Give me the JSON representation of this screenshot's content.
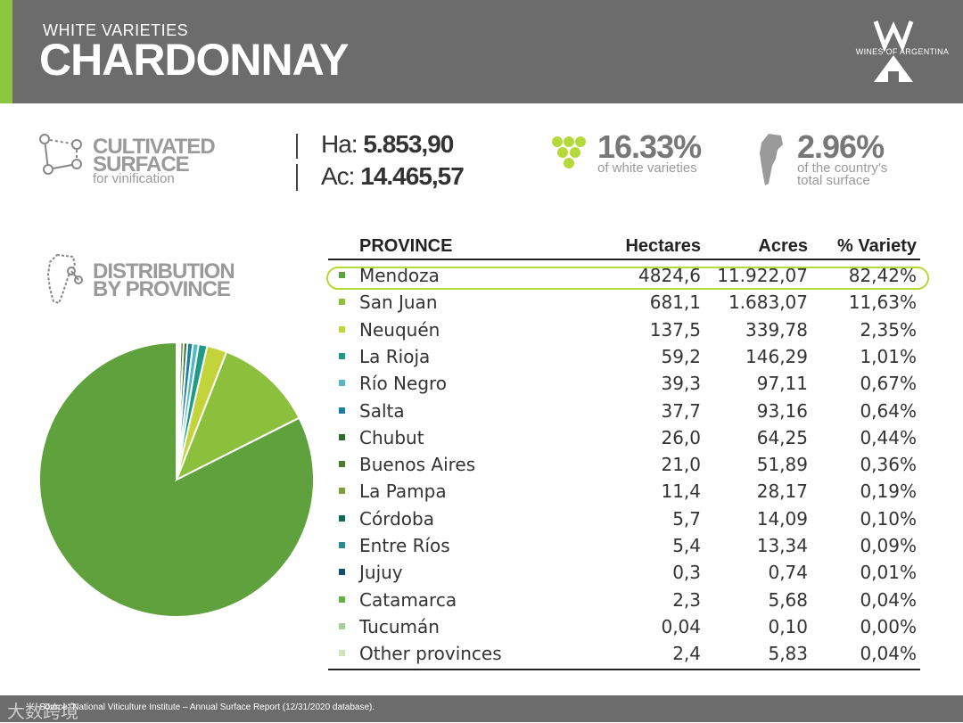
{
  "header": {
    "subtitle": "WHITE VARIETIES",
    "title": "CHARDONNAY",
    "logo_text": "WINES OF ARGENTINA"
  },
  "stats": {
    "cultivated_line1": "CULTIVATED",
    "cultivated_line2": "SURFACE",
    "cultivated_sub": "for vinification",
    "ha_label": "Ha:",
    "ha_value": "5.853,90",
    "ac_label": "Ac:",
    "ac_value": "14.465,57",
    "white_pct": "16.33%",
    "white_sub": "of white varieties",
    "country_pct": "2.96%",
    "country_sub1": "of the country's",
    "country_sub2": "total surface"
  },
  "distribution": {
    "line1": "DISTRIBUTION",
    "line2": "BY PROVINCE"
  },
  "table": {
    "headers": [
      "PROVINCE",
      "Hectares",
      "Acres",
      "% Variety"
    ],
    "rows": [
      {
        "province": "Mendoza",
        "hectares": "4824,6",
        "acres": "11.922,07",
        "pct": "82,42%"
      },
      {
        "province": "San Juan",
        "hectares": "681,1",
        "acres": "1.683,07",
        "pct": "11,63%"
      },
      {
        "province": "Neuquén",
        "hectares": "137,5",
        "acres": "339,78",
        "pct": "2,35%"
      },
      {
        "province": "La Rioja",
        "hectares": "59,2",
        "acres": "146,29",
        "pct": "1,01%"
      },
      {
        "province": "Río Negro",
        "hectares": "39,3",
        "acres": "97,11",
        "pct": "0,67%"
      },
      {
        "province": "Salta",
        "hectares": "37,7",
        "acres": "93,16",
        "pct": "0,64%"
      },
      {
        "province": "Chubut",
        "hectares": "26,0",
        "acres": "64,25",
        "pct": "0,44%"
      },
      {
        "province": "Buenos Aires",
        "hectares": "21,0",
        "acres": "51,89",
        "pct": "0,36%"
      },
      {
        "province": "La Pampa",
        "hectares": "11,4",
        "acres": "28,17",
        "pct": "0,19%"
      },
      {
        "province": "Córdoba",
        "hectares": "5,7",
        "acres": "14,09",
        "pct": "0,10%"
      },
      {
        "province": "Entre Ríos",
        "hectares": "5,4",
        "acres": "13,34",
        "pct": "0,09%"
      },
      {
        "province": "Jujuy",
        "hectares": "0,3",
        "acres": "0,74",
        "pct": "0,01%"
      },
      {
        "province": "Catamarca",
        "hectares": "2,3",
        "acres": "5,68",
        "pct": "0,04%"
      },
      {
        "province": "Tucumán",
        "hectares": "0,04",
        "acres": "0,10",
        "pct": "0,00%"
      },
      {
        "province": "Other provinces",
        "hectares": "2,4",
        "acres": "5,83",
        "pct": "0,04%"
      }
    ]
  },
  "chart_data": {
    "type": "pie",
    "categories": [
      "Mendoza",
      "San Juan",
      "Neuquén",
      "La Rioja",
      "Río Negro",
      "Salta",
      "Chubut",
      "Buenos Aires",
      "La Pampa",
      "Córdoba",
      "Entre Ríos",
      "Jujuy",
      "Catamarca",
      "Tucumán",
      "Other provinces"
    ],
    "values": [
      82.42,
      11.63,
      2.35,
      1.01,
      0.67,
      0.64,
      0.44,
      0.36,
      0.19,
      0.1,
      0.09,
      0.01,
      0.04,
      0.0,
      0.04
    ],
    "colors": [
      "#5fa13d",
      "#8bbf3c",
      "#c3d43a",
      "#1f9a86",
      "#56b8c4",
      "#1a7fa0",
      "#2e6e2a",
      "#4b7a29",
      "#7ea03a",
      "#0f6b55",
      "#2e8a8f",
      "#134f6b",
      "#64b146",
      "#a9cf98",
      "#cfe6b8"
    ]
  },
  "footer": {
    "source": "Source: National Viticulture Institute – Annual Surface Report (12/31/2020 database).",
    "watermark": "大数跨境"
  },
  "colors": {
    "header_bg": "#6c6c6c",
    "accent": "#8cc63f",
    "highlight": "#b6d93a"
  }
}
